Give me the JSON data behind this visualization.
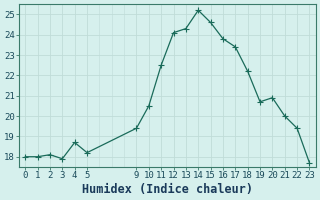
{
  "x": [
    0,
    1,
    2,
    3,
    4,
    5,
    9,
    10,
    11,
    12,
    13,
    14,
    15,
    16,
    17,
    18,
    19,
    20,
    21,
    22,
    23
  ],
  "y": [
    18.0,
    18.0,
    18.1,
    17.9,
    18.7,
    18.2,
    19.4,
    20.5,
    22.5,
    24.1,
    24.3,
    25.2,
    24.6,
    23.8,
    23.4,
    22.2,
    20.7,
    20.9,
    20.0,
    19.4,
    17.7
  ],
  "line_color": "#1a6b5a",
  "marker_color": "#1a6b5a",
  "bg_color": "#d6f0ed",
  "grid_color": "#c0dcd8",
  "xlabel": "Humidex (Indice chaleur)",
  "xlim": [
    -0.5,
    23.5
  ],
  "ylim": [
    17.5,
    25.5
  ],
  "yticks": [
    18,
    19,
    20,
    21,
    22,
    23,
    24,
    25
  ],
  "xticks": [
    0,
    1,
    2,
    3,
    4,
    5,
    9,
    10,
    11,
    12,
    13,
    14,
    15,
    16,
    17,
    18,
    19,
    20,
    21,
    22,
    23
  ],
  "xtick_labels": [
    "0",
    "1",
    "2",
    "3",
    "4",
    "5",
    "9",
    "10",
    "11",
    "12",
    "13",
    "14",
    "15",
    "16",
    "17",
    "18",
    "19",
    "20",
    "21",
    "22",
    "23"
  ],
  "marker_size": 2.5,
  "line_width": 0.9,
  "tick_fontsize": 6.5,
  "xlabel_fontsize": 8.5,
  "frame_color": "#3a7a6a"
}
